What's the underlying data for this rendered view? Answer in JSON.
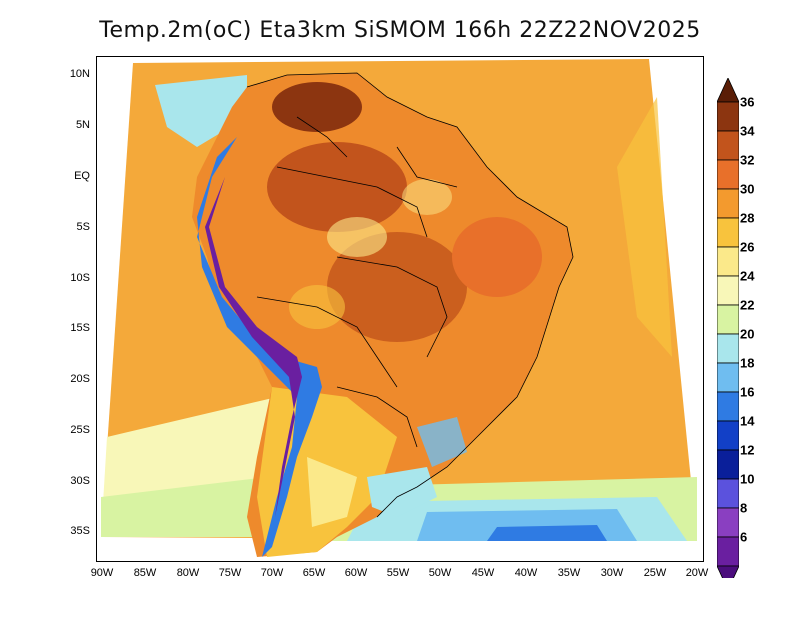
{
  "title": "Temp.2m(oC) Eta3km SiSMOM 166h 22Z22NOV2025",
  "map": {
    "lat_labels": [
      "10N",
      "5N",
      "EQ",
      "5S",
      "10S",
      "15S",
      "20S",
      "25S",
      "30S",
      "35S"
    ],
    "lon_labels": [
      "90W",
      "85W",
      "80W",
      "75W",
      "70W",
      "65W",
      "60W",
      "55W",
      "50W",
      "45W",
      "40W",
      "35W",
      "30W",
      "25W",
      "20W"
    ]
  },
  "colorbar": {
    "labels": [
      "36",
      "34",
      "32",
      "30",
      "28",
      "26",
      "24",
      "22",
      "20",
      "18",
      "16",
      "14",
      "12",
      "10",
      "8",
      "6"
    ],
    "colors": [
      "#5a1d06",
      "#8c3510",
      "#c2541c",
      "#e8702a",
      "#f39a2e",
      "#f8c33d",
      "#fbe98a",
      "#f8f7b8",
      "#d8f3a2",
      "#a9e6ec",
      "#6fbdf0",
      "#2f7be3",
      "#1240c7",
      "#0a1f9a",
      "#5b52dd",
      "#8a3fc1",
      "#6a1fa0",
      "#4b0d7d"
    ]
  }
}
